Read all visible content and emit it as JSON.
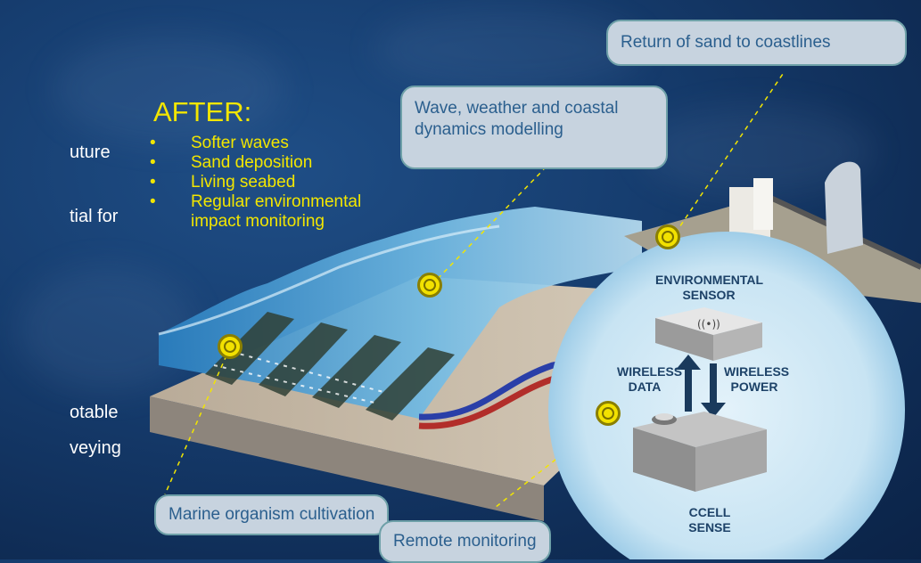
{
  "left_fragments": [
    "uture",
    "tial for",
    "otable",
    "veying"
  ],
  "after": {
    "title": "AFTER:",
    "items": [
      "Softer waves",
      "Sand deposition",
      "Living seabed",
      "Regular environmental impact monitoring"
    ]
  },
  "callouts": {
    "return_sand": "Return of sand to coastlines",
    "wave_modelling": "Wave, weather and coastal dynamics modelling",
    "marine": "Marine organism cultivation",
    "remote": "Remote monitoring"
  },
  "sensor_circle": {
    "environmental_sensor": "ENVIRONMENTAL SENSOR",
    "wireless_data": "WIRELESS DATA",
    "wireless_power": "WIRELESS POWER",
    "ccell_sense": "CCELL SENSE"
  },
  "colors": {
    "accent_yellow": "#f2e600",
    "callout_bg": "#c7d3df",
    "callout_text": "#2b5f8e",
    "circle_bg": "#cfe6f4"
  }
}
